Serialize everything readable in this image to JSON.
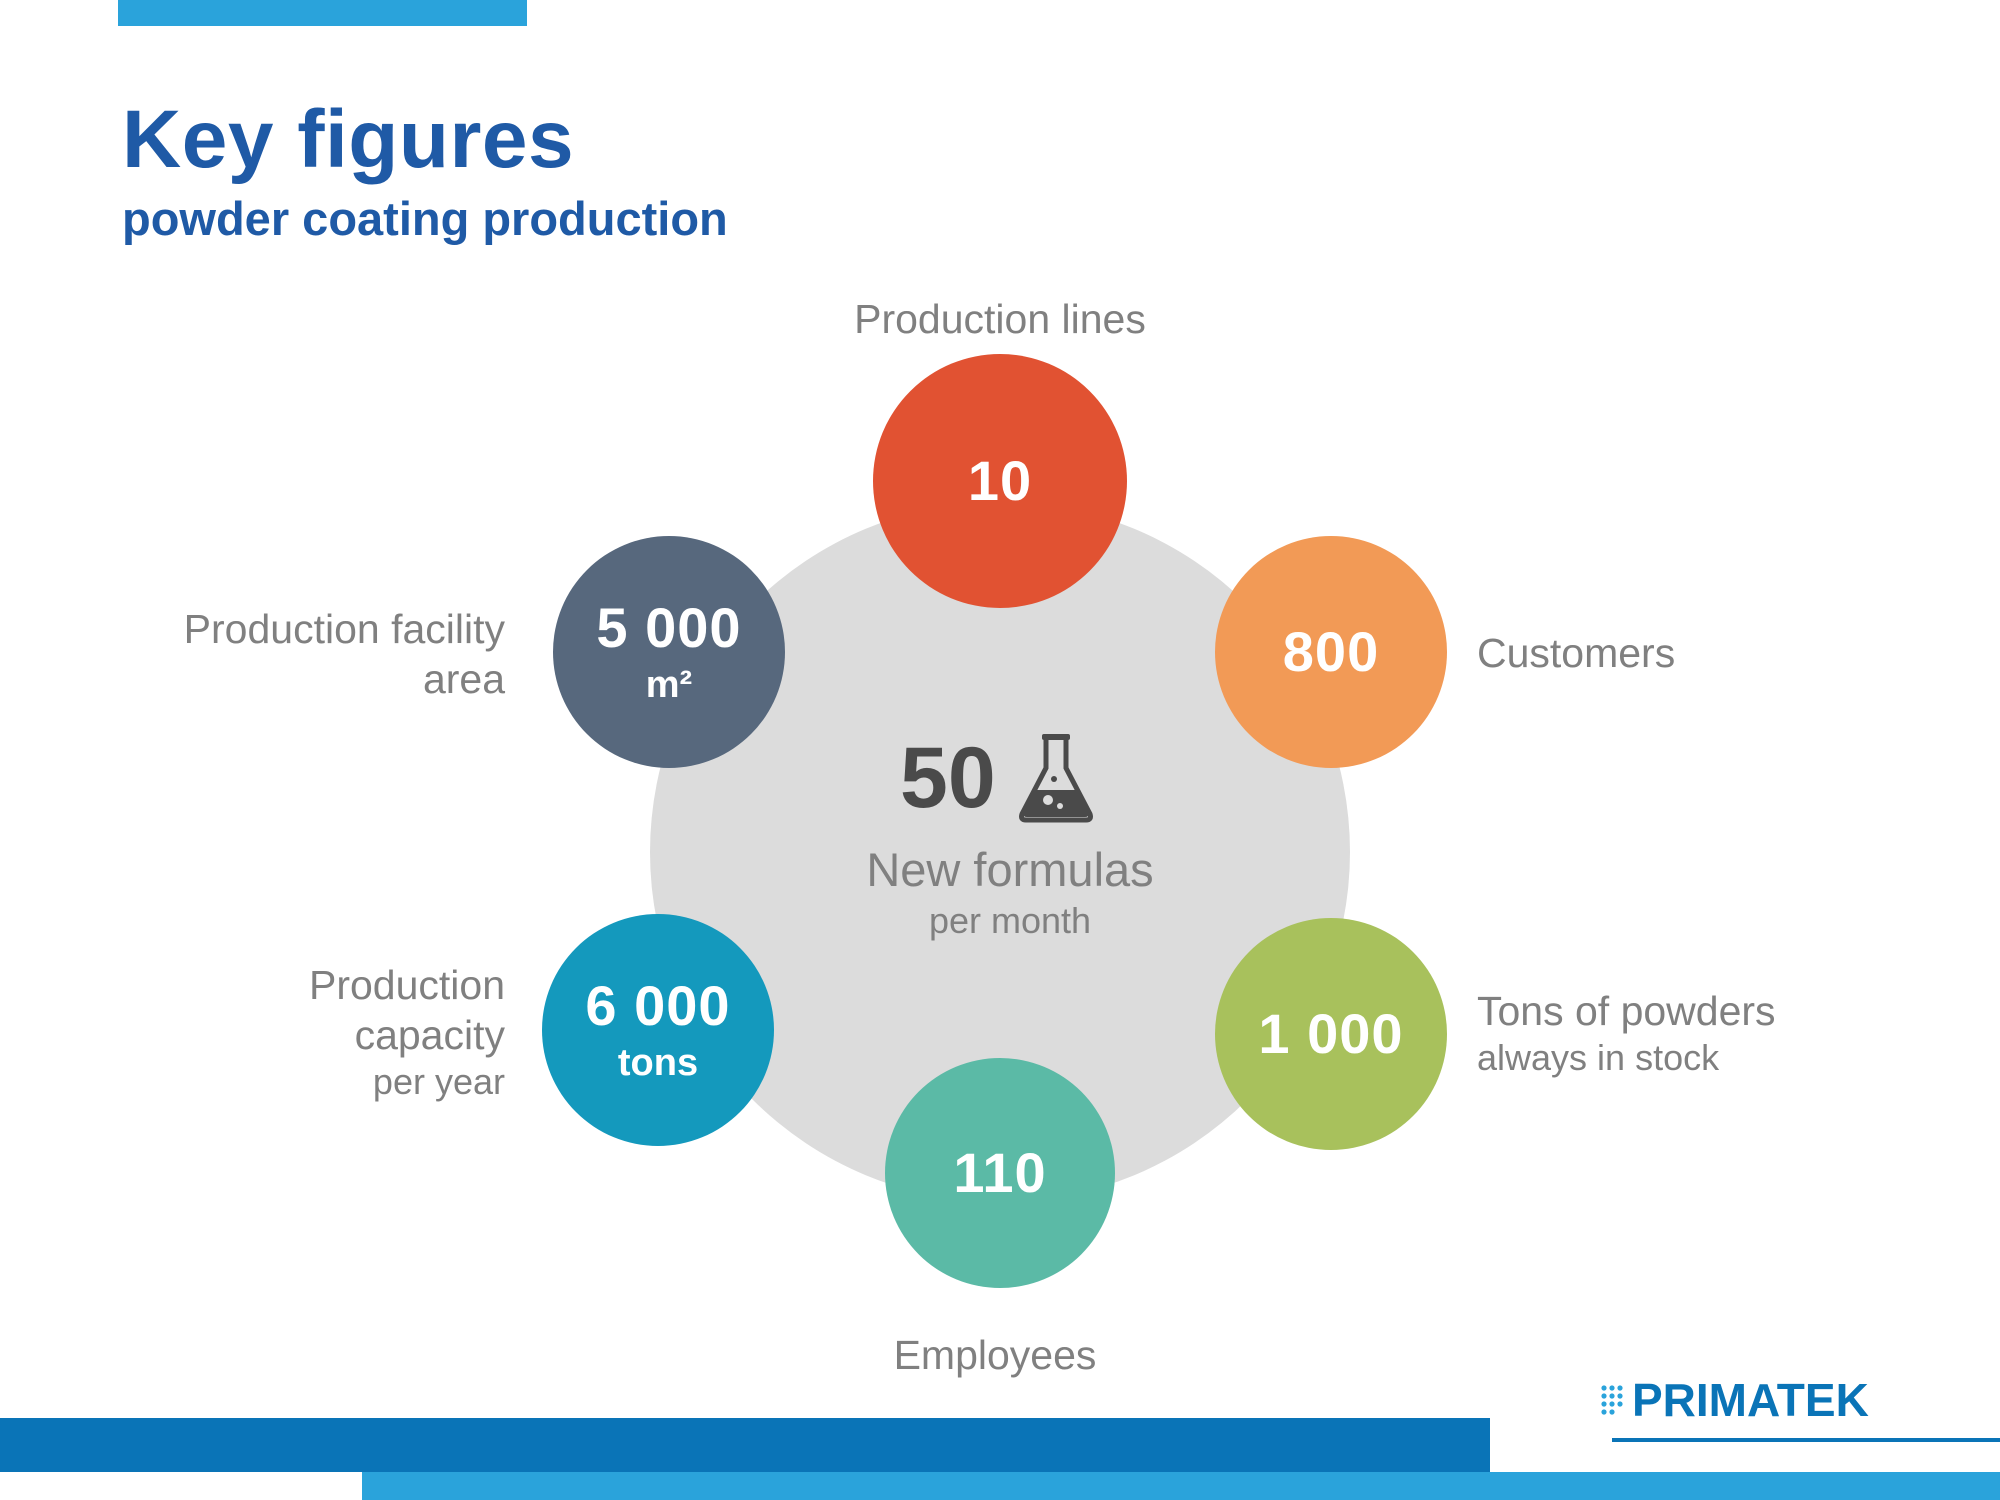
{
  "title": "Key figures",
  "subtitle": "powder coating production",
  "center": {
    "value": "50",
    "icon": "flask-icon",
    "label": "New formulas",
    "sublabel": "per month"
  },
  "figures": {
    "production_lines": {
      "value": "10",
      "label": "Production lines",
      "color": "#e15232"
    },
    "customers": {
      "value": "800",
      "label": "Customers",
      "color": "#f29a56"
    },
    "stock": {
      "value": "1 000",
      "label": "Tons of powders",
      "sublabel": "always in stock",
      "color": "#a8c15c"
    },
    "employees": {
      "value": "110",
      "label": "Employees",
      "color": "#5bbaa6"
    },
    "capacity": {
      "value": "6 000",
      "unit": "tons",
      "label_line1": "Production",
      "label_line2": "capacity",
      "sublabel": "per year",
      "color": "#1499bd"
    },
    "area": {
      "value": "5 000",
      "unit": "m²",
      "label_line1": "Production facility",
      "label_line2": "area",
      "color": "#57687d"
    }
  },
  "logo": {
    "text": "PRIMATEK",
    "color": "#0a74b7"
  },
  "colors": {
    "title": "#1f5aa6",
    "accent_light": "#2aa3db",
    "accent_dark": "#0a74b7",
    "center_disc": "#dcdcdc",
    "label_text": "#808080"
  }
}
